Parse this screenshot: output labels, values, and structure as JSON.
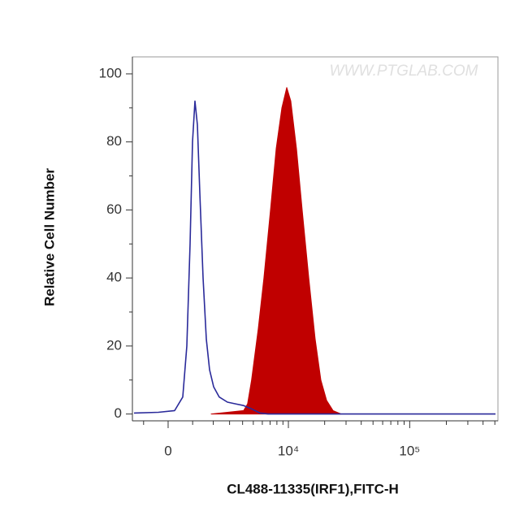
{
  "chart_data": {
    "type": "histogram-overlay",
    "watermark": "WWW.PTGLAB.COM",
    "xlabel": "CL488-11335(IRF1),FITC-H",
    "ylabel": "Relative Cell Number",
    "xscale": "biexponential",
    "linear_width": 2083,
    "xlim": [
      -1515,
      530000
    ],
    "xticks": [
      0,
      {
        "value": 10000,
        "label": "10⁴"
      },
      {
        "value": 100000,
        "label": "10⁵"
      }
    ],
    "xminorticks": [
      -1000,
      1000,
      2000,
      3000,
      4000,
      5000,
      6000,
      7000,
      8000,
      9000,
      20000,
      30000,
      40000,
      50000,
      60000,
      70000,
      80000,
      90000,
      200000,
      300000,
      400000,
      500000
    ],
    "ylim": [
      -2,
      105
    ],
    "yticks": [
      0,
      20,
      40,
      60,
      80,
      100
    ],
    "yminorticks": [
      10,
      30,
      50,
      70,
      90
    ],
    "series": [
      {
        "color": "#c00000",
        "fill": true,
        "x": [
          1889,
          2856,
          4087,
          4445,
          4824,
          5527,
          6193,
          7059,
          7893,
          8818,
          9686,
          10478,
          11686,
          13040,
          14770,
          16710,
          18620,
          20750,
          23450,
          27350
        ],
        "values": [
          0,
          0.5,
          1,
          3,
          10,
          25,
          40,
          60,
          78,
          90,
          96,
          92,
          78,
          60,
          40,
          22,
          10,
          4,
          1,
          0
        ]
      },
      {
        "color": "#2a2a9a",
        "fill": false,
        "x": [
          -1437,
          -386,
          256,
          583,
          751,
          888,
          993,
          1102,
          1211,
          1322,
          1477,
          1637,
          1804,
          2019,
          2342,
          2856,
          3429,
          4087,
          4824,
          5716,
          6718,
          20100,
          506000
        ],
        "values": [
          0.3,
          0.5,
          1,
          5,
          20,
          50,
          80,
          92,
          85,
          65,
          40,
          22,
          13,
          8,
          5,
          3.5,
          3,
          2.5,
          1.5,
          0.3,
          0,
          0,
          0
        ]
      }
    ]
  }
}
